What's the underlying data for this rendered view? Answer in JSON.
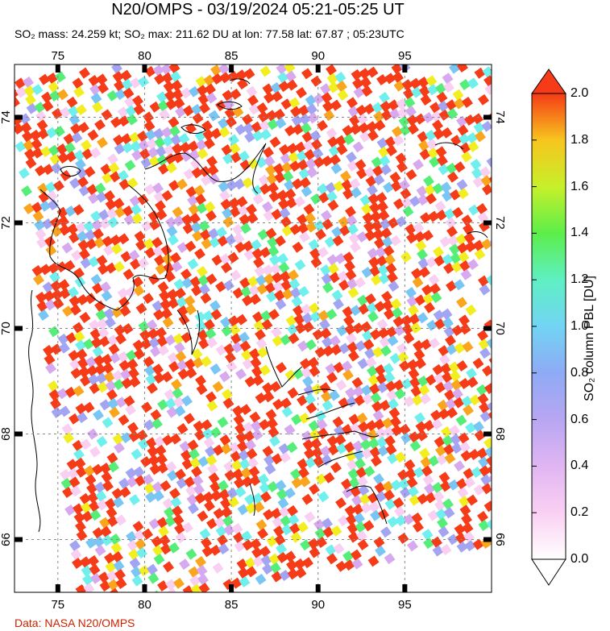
{
  "header": {
    "title": "N20/OMPS - 03/19/2024 05:21-05:25 UT",
    "subtitle": "SO₂ mass: 24.259 kt; SO₂ max: 211.62 DU at lon: 77.58 lat: 67.87 ; 05:23UTC"
  },
  "map": {
    "lon_range": [
      72.5,
      100
    ],
    "lat_range": [
      65,
      75
    ],
    "lon_ticks": [
      "75",
      "80",
      "85",
      "90",
      "95"
    ],
    "lat_ticks": [
      "74",
      "72",
      "70",
      "68",
      "66"
    ],
    "grid_style": "dashed"
  },
  "colorbar": {
    "title": "SO₂ column PBL [DU]",
    "tick_labels": [
      "2.0",
      "1.8",
      "1.6",
      "1.4",
      "1.2",
      "1.0",
      "0.8",
      "0.6",
      "0.4",
      "0.2",
      "0.0"
    ],
    "range": [
      0.0,
      2.0
    ],
    "colors": [
      "#ffffff",
      "#f9d0f2",
      "#d7a9ef",
      "#a3a5f2",
      "#79c6f4",
      "#6ff0ed",
      "#54ee78",
      "#9ef036",
      "#f2ee22",
      "#f9a51d",
      "#f53b17"
    ]
  },
  "credit": "Data: NASA N20/OMPS"
}
